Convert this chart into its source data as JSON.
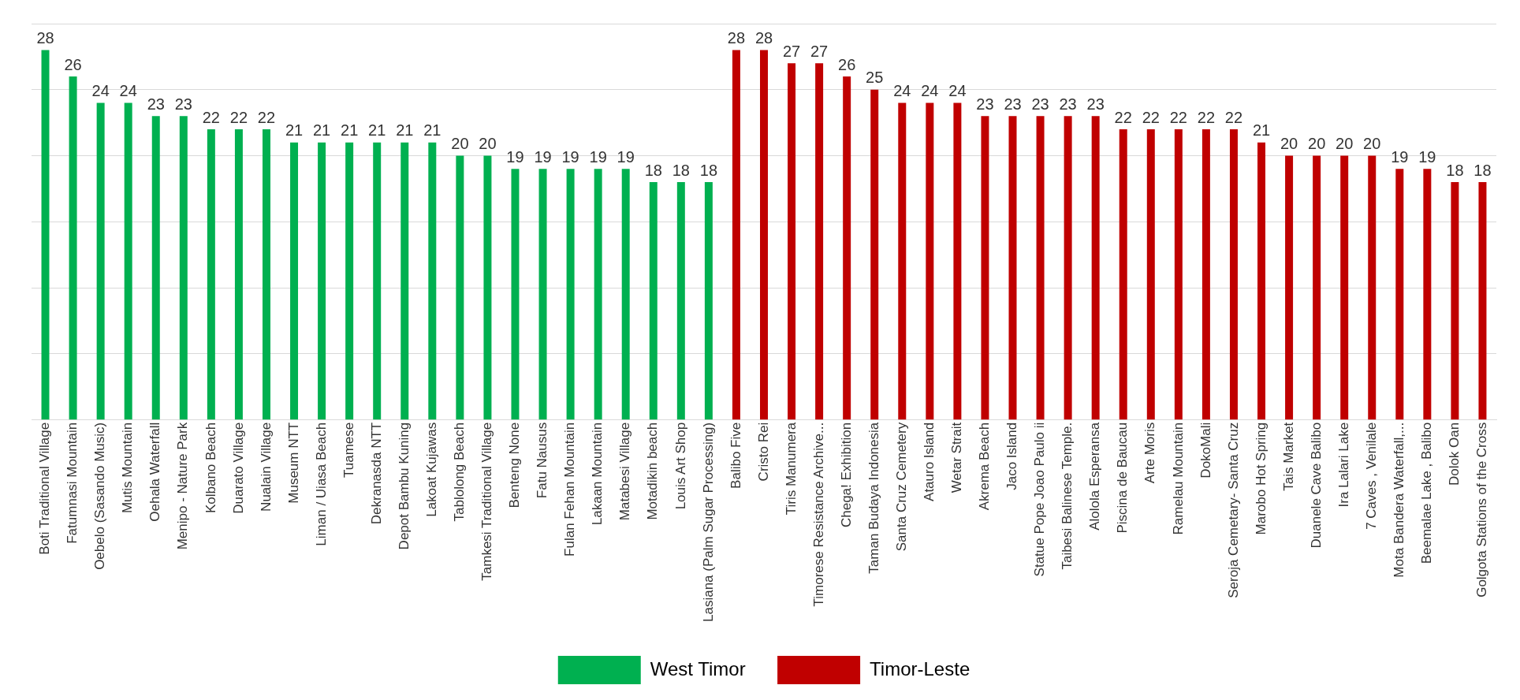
{
  "chart_data": {
    "type": "bar",
    "categories": [
      "Boti Traditional Village",
      "Fatumnasi Mountain",
      "Oebelo (Sasando Music)",
      "Mutis Mountain",
      "Oehala Waterfall",
      "Menipo - Nature Park",
      "Kolbano Beach",
      "Duarato Village",
      "Nualain Village",
      "Museum NTT",
      "Liman / Uiasa Beach",
      "Tuamese",
      "Dekranasda NTT",
      "Depot Bambu Kuning",
      "Lakoat Kujawas",
      "Tablolong Beach",
      "Tamkesi Traditional Village",
      "Benteng None",
      "Fatu Nausus",
      "Fulan Fehan Mountain",
      "Lakaan Mountain",
      "Matabesi Village",
      "Motadikin beach",
      "Louis Art Shop",
      "Lasiana (Palm Sugar Processing)",
      "Balibo Five",
      "Cristo Rei",
      "Tiris Manumera",
      "Timorese Resistance Archive...",
      "Chega! Exhibition",
      "Taman Budaya Indonesia",
      "Santa Cruz Cemetery",
      "Atauro Island",
      "Wetar Strait",
      "Akrema Beach",
      "Jaco Island",
      "Statue Pope Joao Paulo ii",
      "Taibesi Balinese Temple.",
      "Alolola Esperansa",
      "Piscina de Baucau",
      "Arte Moris",
      "Ramelau Mountain",
      "DokoMali",
      "Seroja Cemetary- Santa Cruz",
      "Marobo Hot Spring",
      "Tais Market",
      "Duanele Cave Balibo",
      "Ira Lalari Lake",
      "7 Caves , Venilale",
      "Mota Bandera Waterfall,...",
      "Beemalae Lake , Balibo",
      "Dolok Oan",
      "Golgota Stations of the Cross"
    ],
    "series": [
      {
        "name": "West Timor",
        "color": "#00b050",
        "values": [
          28,
          26,
          24,
          24,
          23,
          23,
          22,
          22,
          22,
          21,
          21,
          21,
          21,
          21,
          21,
          20,
          20,
          19,
          19,
          19,
          19,
          19,
          18,
          18,
          18,
          null,
          null,
          null,
          null,
          null,
          null,
          null,
          null,
          null,
          null,
          null,
          null,
          null,
          null,
          null,
          null,
          null,
          null,
          null,
          null,
          null,
          null,
          null,
          null,
          null,
          null,
          null,
          null
        ]
      },
      {
        "name": "Timor-Leste",
        "color": "#c00000",
        "values": [
          null,
          null,
          null,
          null,
          null,
          null,
          null,
          null,
          null,
          null,
          null,
          null,
          null,
          null,
          null,
          null,
          null,
          null,
          null,
          null,
          null,
          null,
          null,
          null,
          null,
          28,
          28,
          27,
          27,
          26,
          25,
          24,
          24,
          24,
          23,
          23,
          23,
          23,
          23,
          22,
          22,
          22,
          22,
          22,
          21,
          20,
          20,
          20,
          20,
          19,
          19,
          18,
          18
        ]
      }
    ],
    "ylim": [
      0,
      30
    ],
    "yticks": [
      {
        "value": 0,
        "label": null
      },
      {
        "value": 5,
        "label": null
      },
      {
        "value": 10,
        "label": null
      },
      {
        "value": 15,
        "label": null
      },
      {
        "value": 20,
        "label": null
      },
      {
        "value": 25,
        "label": null
      },
      {
        "value": 30,
        "label": null
      }
    ],
    "grid": "y",
    "data_labels": true,
    "legend": "bottom",
    "tick_labels": "x"
  }
}
